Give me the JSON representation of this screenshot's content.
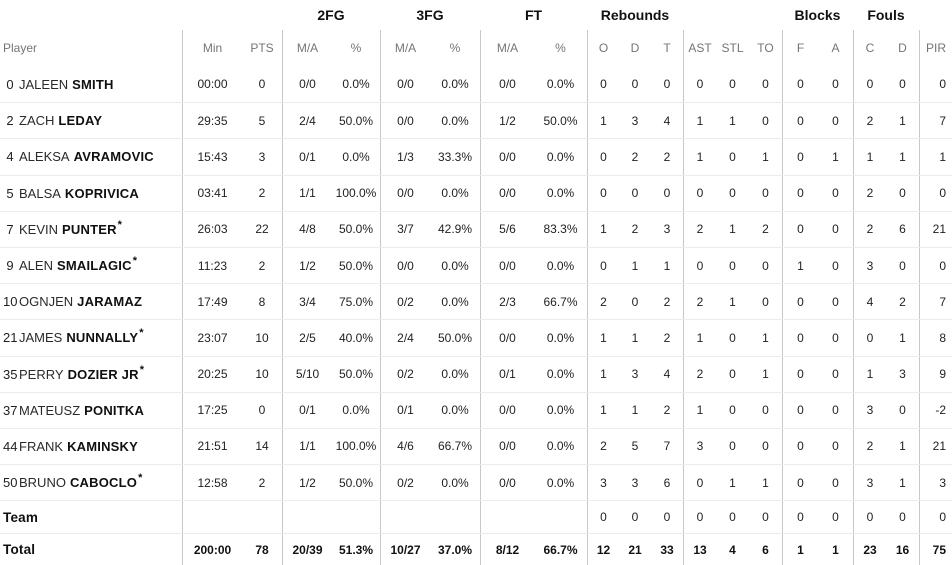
{
  "colors": {
    "text": "#1f1f1f",
    "header_text": "#757575",
    "group_header_text": "#111111",
    "vertical_divider": "#c8c8c8",
    "horizontal_divider": "#ebebeb",
    "background": "#ffffff"
  },
  "table": {
    "group_headers": [
      "",
      "2FG",
      "3FG",
      "FT",
      "Rebounds",
      "",
      "Blocks",
      "Fouls",
      ""
    ],
    "columns": [
      "Player",
      "Min",
      "PTS",
      "M/A",
      "%",
      "M/A",
      "%",
      "M/A",
      "%",
      "O",
      "D",
      "T",
      "AST",
      "STL",
      "TO",
      "F",
      "A",
      "C",
      "D",
      "PIR"
    ],
    "rows": [
      {
        "type": "player",
        "num": "0",
        "first": "JALEEN",
        "last": "SMITH",
        "star": "",
        "min": "00:00",
        "pts": "0",
        "fg2": "0/0",
        "fg2p": "0.0%",
        "fg3": "0/0",
        "fg3p": "0.0%",
        "ft": "0/0",
        "ftp": "0.0%",
        "ro": "0",
        "rd": "0",
        "rt": "0",
        "ast": "0",
        "stl": "0",
        "to": "0",
        "bf": "0",
        "ba": "0",
        "fc": "0",
        "fd": "0",
        "pir": "0"
      },
      {
        "type": "player",
        "num": "2",
        "first": "ZACH",
        "last": "LEDAY",
        "star": "",
        "min": "29:35",
        "pts": "5",
        "fg2": "2/4",
        "fg2p": "50.0%",
        "fg3": "0/0",
        "fg3p": "0.0%",
        "ft": "1/2",
        "ftp": "50.0%",
        "ro": "1",
        "rd": "3",
        "rt": "4",
        "ast": "1",
        "stl": "1",
        "to": "0",
        "bf": "0",
        "ba": "0",
        "fc": "2",
        "fd": "1",
        "pir": "7"
      },
      {
        "type": "player",
        "num": "4",
        "first": "ALEKSA",
        "last": "AVRAMOVIC",
        "star": "",
        "min": "15:43",
        "pts": "3",
        "fg2": "0/1",
        "fg2p": "0.0%",
        "fg3": "1/3",
        "fg3p": "33.3%",
        "ft": "0/0",
        "ftp": "0.0%",
        "ro": "0",
        "rd": "2",
        "rt": "2",
        "ast": "1",
        "stl": "0",
        "to": "1",
        "bf": "0",
        "ba": "1",
        "fc": "1",
        "fd": "1",
        "pir": "1"
      },
      {
        "type": "player",
        "num": "5",
        "first": "BALSA",
        "last": "KOPRIVICA",
        "star": "",
        "min": "03:41",
        "pts": "2",
        "fg2": "1/1",
        "fg2p": "100.0%",
        "fg3": "0/0",
        "fg3p": "0.0%",
        "ft": "0/0",
        "ftp": "0.0%",
        "ro": "0",
        "rd": "0",
        "rt": "0",
        "ast": "0",
        "stl": "0",
        "to": "0",
        "bf": "0",
        "ba": "0",
        "fc": "2",
        "fd": "0",
        "pir": "0"
      },
      {
        "type": "player",
        "num": "7",
        "first": "KEVIN",
        "last": "PUNTER",
        "star": "*",
        "min": "26:03",
        "pts": "22",
        "fg2": "4/8",
        "fg2p": "50.0%",
        "fg3": "3/7",
        "fg3p": "42.9%",
        "ft": "5/6",
        "ftp": "83.3%",
        "ro": "1",
        "rd": "2",
        "rt": "3",
        "ast": "2",
        "stl": "1",
        "to": "2",
        "bf": "0",
        "ba": "0",
        "fc": "2",
        "fd": "6",
        "pir": "21"
      },
      {
        "type": "player",
        "num": "9",
        "first": "ALEN",
        "last": "SMAILAGIC",
        "star": "*",
        "min": "11:23",
        "pts": "2",
        "fg2": "1/2",
        "fg2p": "50.0%",
        "fg3": "0/0",
        "fg3p": "0.0%",
        "ft": "0/0",
        "ftp": "0.0%",
        "ro": "0",
        "rd": "1",
        "rt": "1",
        "ast": "0",
        "stl": "0",
        "to": "0",
        "bf": "1",
        "ba": "0",
        "fc": "3",
        "fd": "0",
        "pir": "0"
      },
      {
        "type": "player",
        "num": "10",
        "first": "OGNJEN",
        "last": "JARAMAZ",
        "star": "",
        "min": "17:49",
        "pts": "8",
        "fg2": "3/4",
        "fg2p": "75.0%",
        "fg3": "0/2",
        "fg3p": "0.0%",
        "ft": "2/3",
        "ftp": "66.7%",
        "ro": "2",
        "rd": "0",
        "rt": "2",
        "ast": "2",
        "stl": "1",
        "to": "0",
        "bf": "0",
        "ba": "0",
        "fc": "4",
        "fd": "2",
        "pir": "7"
      },
      {
        "type": "player",
        "num": "21",
        "first": "JAMES",
        "last": "NUNNALLY",
        "star": "*",
        "min": "23:07",
        "pts": "10",
        "fg2": "2/5",
        "fg2p": "40.0%",
        "fg3": "2/4",
        "fg3p": "50.0%",
        "ft": "0/0",
        "ftp": "0.0%",
        "ro": "1",
        "rd": "1",
        "rt": "2",
        "ast": "1",
        "stl": "0",
        "to": "1",
        "bf": "0",
        "ba": "0",
        "fc": "0",
        "fd": "1",
        "pir": "8"
      },
      {
        "type": "player",
        "num": "35",
        "first": "PERRY",
        "last": "DOZIER JR",
        "star": "*",
        "min": "20:25",
        "pts": "10",
        "fg2": "5/10",
        "fg2p": "50.0%",
        "fg3": "0/2",
        "fg3p": "0.0%",
        "ft": "0/1",
        "ftp": "0.0%",
        "ro": "1",
        "rd": "3",
        "rt": "4",
        "ast": "2",
        "stl": "0",
        "to": "1",
        "bf": "0",
        "ba": "0",
        "fc": "1",
        "fd": "3",
        "pir": "9"
      },
      {
        "type": "player",
        "num": "37",
        "first": "MATEUSZ",
        "last": "PONITKA",
        "star": "",
        "min": "17:25",
        "pts": "0",
        "fg2": "0/1",
        "fg2p": "0.0%",
        "fg3": "0/1",
        "fg3p": "0.0%",
        "ft": "0/0",
        "ftp": "0.0%",
        "ro": "1",
        "rd": "1",
        "rt": "2",
        "ast": "1",
        "stl": "0",
        "to": "0",
        "bf": "0",
        "ba": "0",
        "fc": "3",
        "fd": "0",
        "pir": "-2"
      },
      {
        "type": "player",
        "num": "44",
        "first": "FRANK",
        "last": "KAMINSKY",
        "star": "",
        "min": "21:51",
        "pts": "14",
        "fg2": "1/1",
        "fg2p": "100.0%",
        "fg3": "4/6",
        "fg3p": "66.7%",
        "ft": "0/0",
        "ftp": "0.0%",
        "ro": "2",
        "rd": "5",
        "rt": "7",
        "ast": "3",
        "stl": "0",
        "to": "0",
        "bf": "0",
        "ba": "0",
        "fc": "2",
        "fd": "1",
        "pir": "21"
      },
      {
        "type": "player",
        "num": "50",
        "first": "BRUNO",
        "last": "CABOCLO",
        "star": "*",
        "min": "12:58",
        "pts": "2",
        "fg2": "1/2",
        "fg2p": "50.0%",
        "fg3": "0/2",
        "fg3p": "0.0%",
        "ft": "0/0",
        "ftp": "0.0%",
        "ro": "3",
        "rd": "3",
        "rt": "6",
        "ast": "0",
        "stl": "1",
        "to": "1",
        "bf": "0",
        "ba": "0",
        "fc": "3",
        "fd": "1",
        "pir": "3"
      },
      {
        "type": "team",
        "num": "",
        "first": "",
        "last": "Team",
        "star": "",
        "min": "",
        "pts": "",
        "fg2": "",
        "fg2p": "",
        "fg3": "",
        "fg3p": "",
        "ft": "",
        "ftp": "",
        "ro": "0",
        "rd": "0",
        "rt": "0",
        "ast": "0",
        "stl": "0",
        "to": "0",
        "bf": "0",
        "ba": "0",
        "fc": "0",
        "fd": "0",
        "pir": "0"
      },
      {
        "type": "total",
        "num": "",
        "first": "",
        "last": "Total",
        "star": "",
        "min": "200:00",
        "pts": "78",
        "fg2": "20/39",
        "fg2p": "51.3%",
        "fg3": "10/27",
        "fg3p": "37.0%",
        "ft": "8/12",
        "ftp": "66.7%",
        "ro": "12",
        "rd": "21",
        "rt": "33",
        "ast": "13",
        "stl": "4",
        "to": "6",
        "bf": "1",
        "ba": "1",
        "fc": "23",
        "fd": "16",
        "pir": "75"
      }
    ]
  }
}
